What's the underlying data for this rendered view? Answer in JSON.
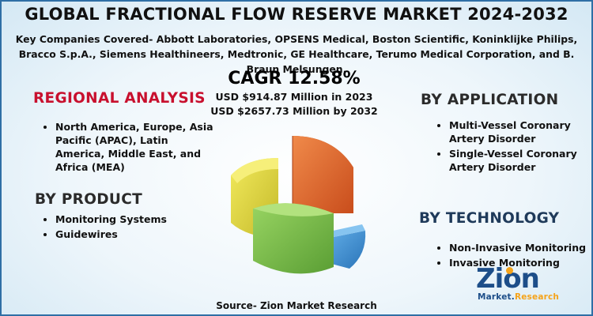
{
  "title": "GLOBAL FRACTIONAL FLOW RESERVE MARKET 2024-2032",
  "companies": "Key Companies Covered- Abbott Laboratories, OPSENS Medical, Boston Scientific, Koninklijke Philips, Bracco S.p.A., Siemens Healthineers, Medtronic, GE Healthcare, Terumo Medical Corporation, and B. Braun Melsungen.",
  "cagr": "CAGR 12.58%",
  "market_2023": "USD $914.87 Million in 2023",
  "market_2032": "USD $2657.73 Million by 2032",
  "regional": {
    "heading": "REGIONAL ANALYSIS",
    "items": [
      "North America, Europe, Asia Pacific (APAC), Latin America, Middle East, and Africa (MEA)"
    ]
  },
  "product": {
    "heading": "BY PRODUCT",
    "items": [
      "Monitoring Systems",
      "Guidewires"
    ]
  },
  "application": {
    "heading": "BY  APPLICATION",
    "items": [
      "Multi-Vessel Coronary Artery Disorder",
      "Single-Vessel Coronary Artery Disorder"
    ]
  },
  "technology": {
    "heading": "BY TECHNOLOGY",
    "items": [
      "Non-Invasive Monitoring",
      "Invasive Monitoring"
    ]
  },
  "source": "Source- Zion Market Research",
  "logo": {
    "word": "Zion",
    "sub_left": "Market.",
    "sub_right": "Research"
  },
  "colors": {
    "heading_red": "#c8102e",
    "heading_navy": "#1f3a5a",
    "pie_orange": "#e8622a",
    "pie_yellow": "#e2d83a",
    "pie_green": "#7cc04a",
    "pie_blue": "#3a8fd6",
    "logo_blue": "#1d4e89",
    "logo_orange": "#f5a31a"
  }
}
